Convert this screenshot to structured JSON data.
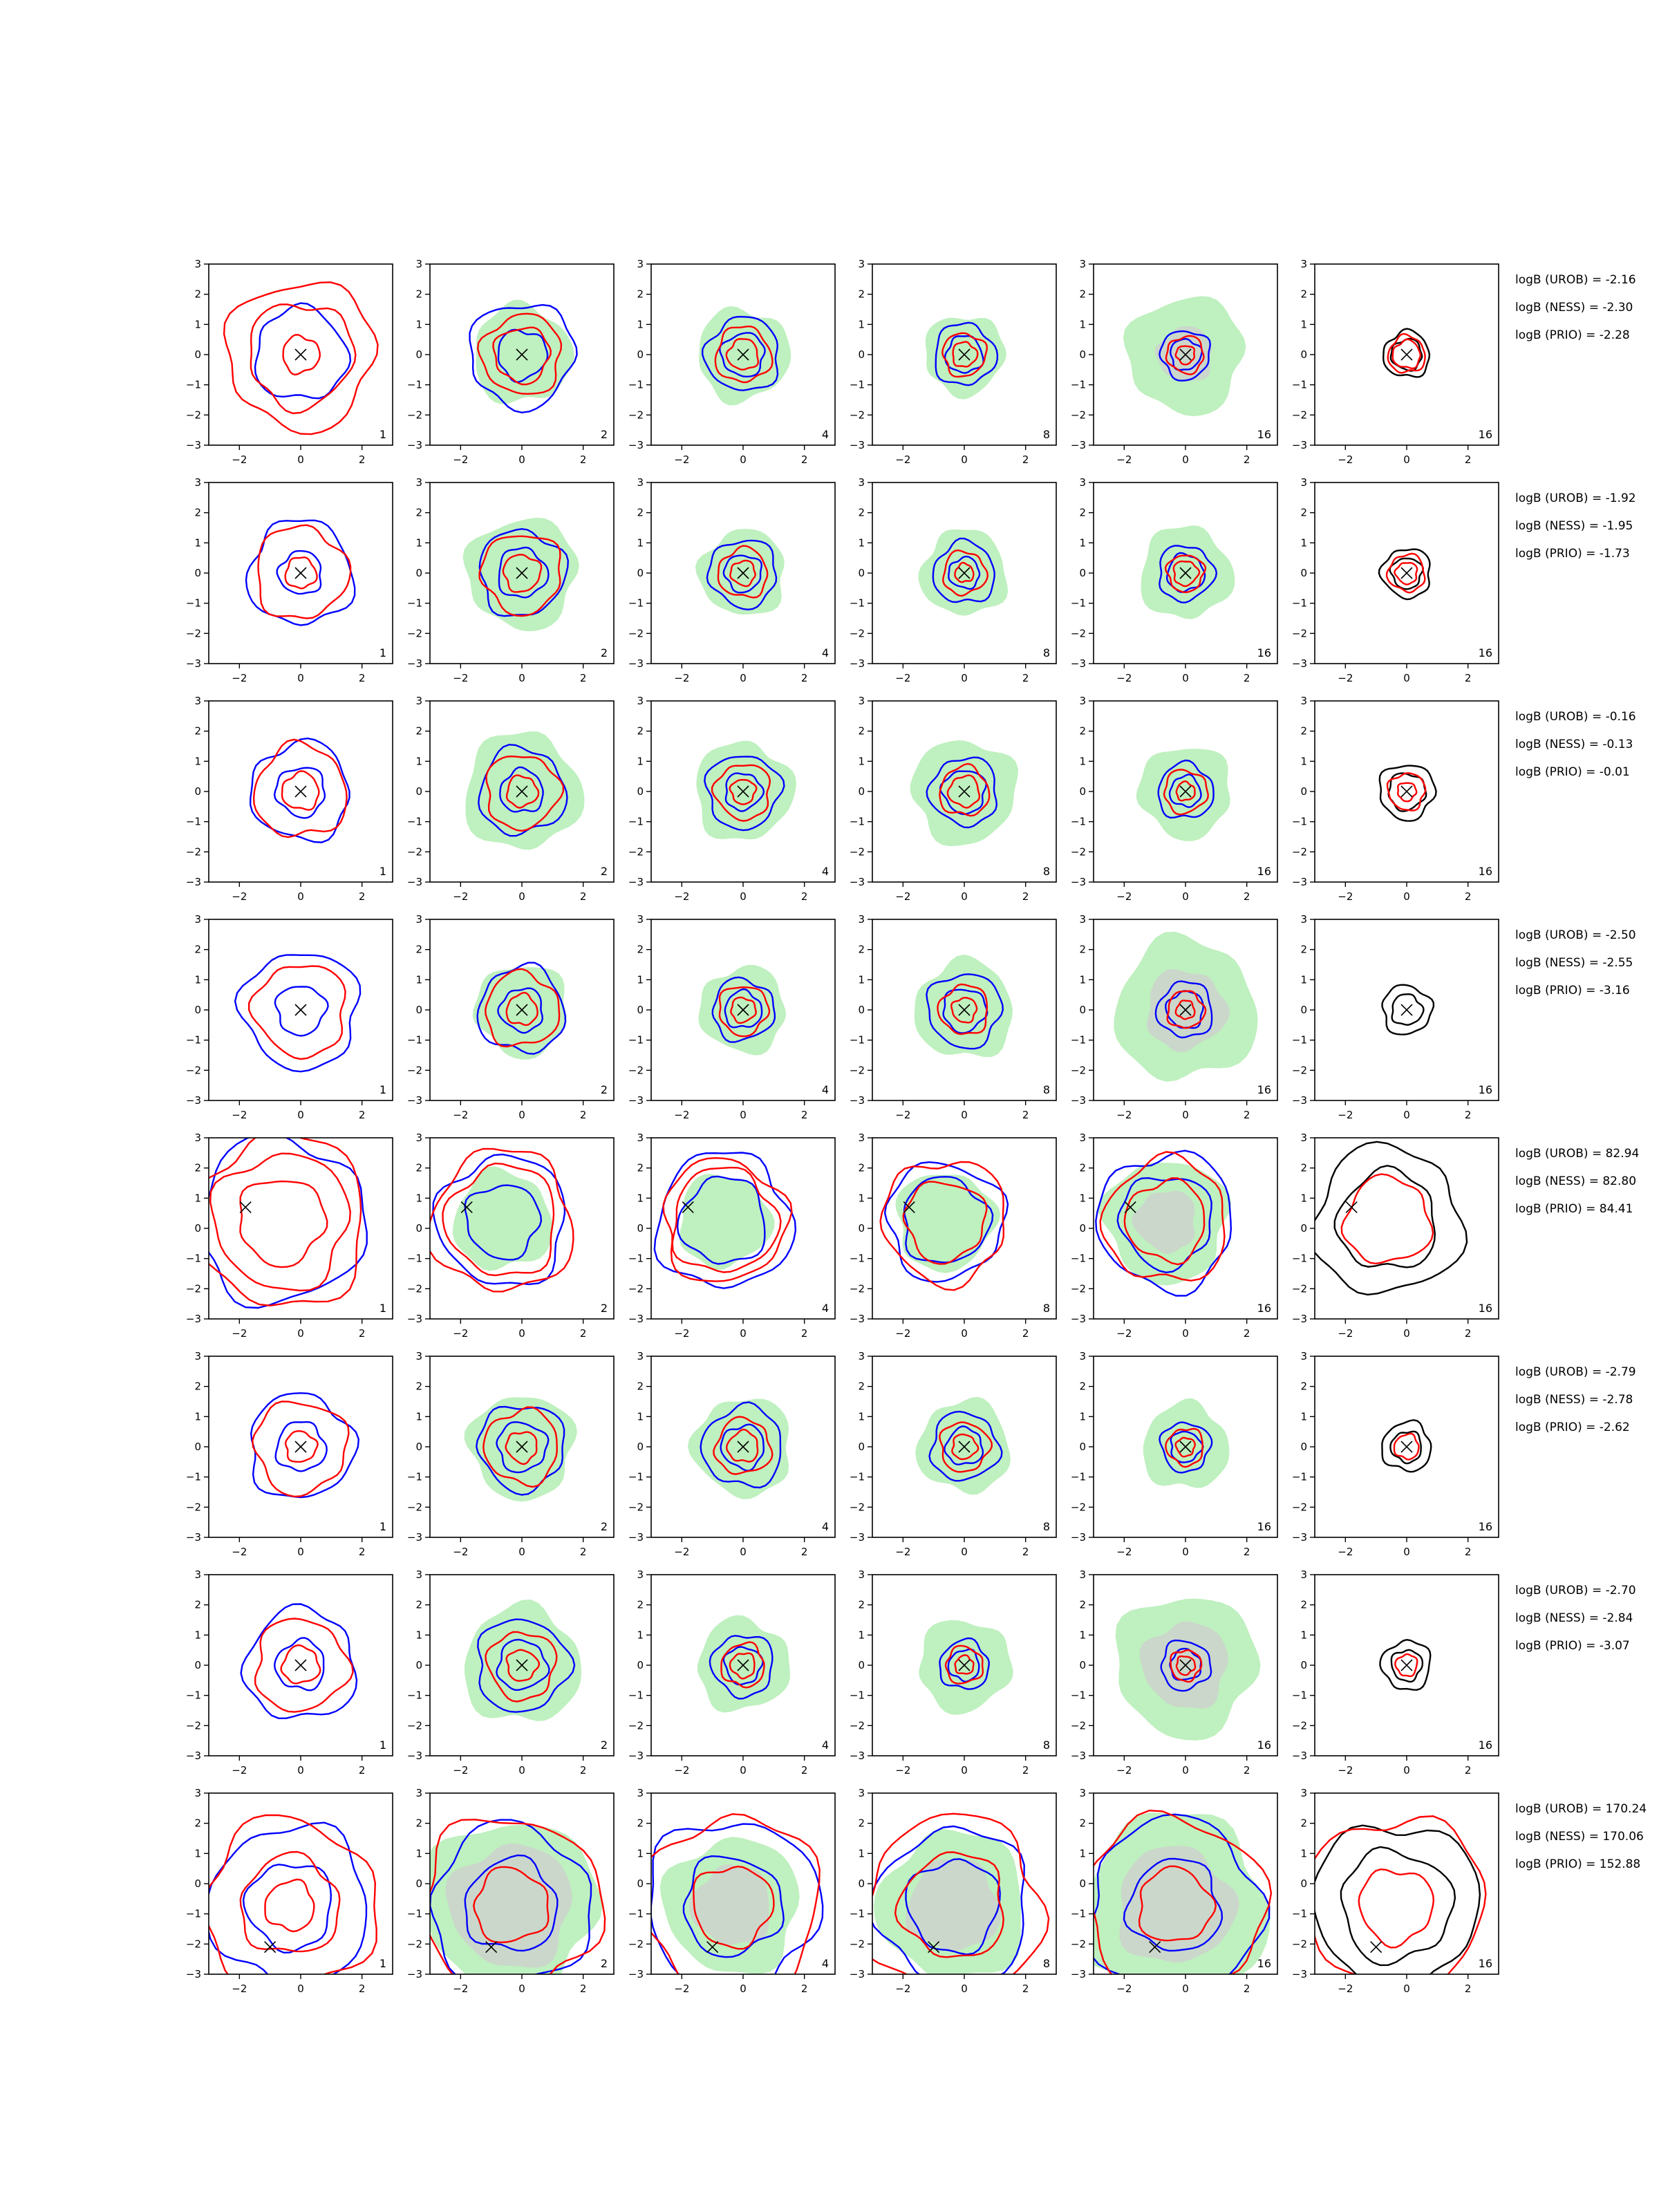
{
  "chart_data": {
    "type": "contour-grid",
    "rows": 8,
    "cols": 6,
    "xlim": [
      -3,
      3
    ],
    "ylim": [
      -3,
      3
    ],
    "x_ticks": [
      -2,
      0,
      2
    ],
    "y_ticks": [
      3,
      2,
      1,
      0,
      -1,
      -2,
      -3
    ],
    "x_tick_labels": [
      "−2",
      "0",
      "2"
    ],
    "y_tick_labels": [
      "3",
      "2",
      "1",
      "0",
      "−1",
      "−2",
      "−3"
    ],
    "column_labels": [
      "1",
      "2",
      "4",
      "8",
      "16",
      "16"
    ],
    "colors": {
      "red": "#ff0000",
      "blue": "#0000ff",
      "black": "#000000",
      "fill_green": "#bff0bf",
      "fill_gray": "#cfcfcf"
    },
    "rows_data": [
      {
        "marker": [
          0,
          0
        ],
        "logB": [
          "logB (UROB) = -2.16",
          "logB (NESS) = -2.30",
          "logB (PRIO) = -2.28"
        ],
        "panels": [
          {
            "fill": null,
            "blue": [
              1.5
            ],
            "red": [
              0.6,
              1.7,
              2.4
            ]
          },
          {
            "fill": [
              1.6
            ],
            "blue": [
              0.8,
              1.7
            ],
            "red": [
              0.9,
              1.3
            ]
          },
          {
            "fill": [
              1.5
            ],
            "blue": [
              0.7,
              1.2
            ],
            "red": [
              0.5,
              0.9
            ]
          },
          {
            "fill": [
              1.3
            ],
            "blue": [
              0.6,
              1.0
            ],
            "red": [
              0.4,
              0.7
            ]
          },
          {
            "fill": [
              1.9,
              0.9
            ],
            "blue": [
              0.5,
              0.8
            ],
            "red": [
              0.3,
              0.6
            ]
          },
          {
            "fill": null,
            "black": [
              0.5,
              0.75
            ],
            "red": [
              0.45,
              0.6
            ]
          }
        ]
      },
      {
        "marker": [
          0,
          0
        ],
        "logB": [
          "logB (UROB) = -1.92",
          "logB (NESS) = -1.95",
          "logB (PRIO) = -1.73"
        ],
        "panels": [
          {
            "fill": null,
            "blue": [
              0.7,
              1.7
            ],
            "red": [
              0.5,
              1.5
            ]
          },
          {
            "fill": [
              1.8
            ],
            "blue": [
              0.8,
              1.4
            ],
            "red": [
              0.6,
              1.3
            ]
          },
          {
            "fill": [
              1.4
            ],
            "blue": [
              0.6,
              1.1
            ],
            "red": [
              0.4,
              0.8
            ]
          },
          {
            "fill": [
              1.4
            ],
            "blue": [
              0.5,
              1.0
            ],
            "red": [
              0.3,
              0.7
            ]
          },
          {
            "fill": [
              1.5
            ],
            "blue": [
              0.6,
              0.9
            ],
            "red": [
              0.4,
              0.6
            ]
          },
          {
            "fill": null,
            "black": [
              0.5,
              0.8
            ],
            "red": [
              0.35,
              0.6
            ]
          }
        ]
      },
      {
        "marker": [
          0,
          0
        ],
        "logB": [
          "logB (UROB) = -0.16",
          "logB (NESS) = -0.13",
          "logB (PRIO) = -0.01"
        ],
        "panels": [
          {
            "fill": null,
            "blue": [
              0.8,
              1.6
            ],
            "red": [
              0.6,
              1.5
            ]
          },
          {
            "fill": [
              1.9
            ],
            "blue": [
              0.7,
              1.4
            ],
            "red": [
              0.5,
              1.2
            ]
          },
          {
            "fill": [
              1.6
            ],
            "blue": [
              0.6,
              1.2
            ],
            "red": [
              0.4,
              0.9
            ]
          },
          {
            "fill": [
              1.7
            ],
            "blue": [
              0.7,
              1.1
            ],
            "red": [
              0.5,
              0.8
            ]
          },
          {
            "fill": [
              1.5
            ],
            "blue": [
              0.5,
              0.9
            ],
            "red": [
              0.3,
              0.7
            ]
          },
          {
            "fill": null,
            "black": [
              0.6,
              0.9
            ],
            "red": [
              0.3,
              0.6
            ]
          }
        ]
      },
      {
        "marker": [
          0,
          0
        ],
        "logB": [
          "logB (UROB) = -2.50",
          "logB (NESS) = -2.55",
          "logB (PRIO) = -3.16"
        ],
        "panels": [
          {
            "fill": null,
            "blue": [
              0.8,
              1.9
            ],
            "red": [
              1.5
            ]
          },
          {
            "fill": [
              1.5
            ],
            "blue": [
              0.7,
              1.4
            ],
            "red": [
              0.5,
              1.2
            ]
          },
          {
            "fill": [
              1.4
            ],
            "blue": [
              0.6,
              1.0
            ],
            "red": [
              0.4,
              0.8
            ]
          },
          {
            "fill": [
              1.6
            ],
            "blue": [
              0.7,
              1.2
            ],
            "red": [
              0.4,
              0.8
            ]
          },
          {
            "fill": [
              2.3,
              1.3
            ],
            "blue": [
              0.6,
              0.9
            ],
            "red": [
              0.3,
              0.6
            ]
          },
          {
            "fill": null,
            "black": [
              0.5,
              0.8
            ],
            "red": []
          }
        ]
      },
      {
        "marker": [
          -1.8,
          0.7
        ],
        "logB": [
          "logB (UROB) = 82.94",
          "logB (NESS) = 82.80",
          "logB (PRIO) = 84.41"
        ],
        "panels": [
          {
            "fill": null,
            "blue": [
              2.7
            ],
            "red": [
              1.4,
              2.2,
              2.8
            ]
          },
          {
            "fill": [
              1.6
            ],
            "blue": [
              1.2,
              2.1
            ],
            "red": [
              1.8,
              2.3
            ]
          },
          {
            "fill": [
              1.5
            ],
            "blue": [
              1.4,
              2.2
            ],
            "red": [
              1.7,
              2.0
            ]
          },
          {
            "fill": [
              1.6
            ],
            "blue": [
              1.4,
              1.9
            ],
            "red": [
              1.3,
              2.0
            ]
          },
          {
            "fill": [
              2.0,
              1.0
            ],
            "blue": [
              1.5,
              2.2
            ],
            "red": [
              1.3,
              2.0
            ]
          },
          {
            "fill": null,
            "black": [
              1.6,
              2.4
            ],
            "red": [
              1.4
            ]
          }
        ]
      },
      {
        "marker": [
          0,
          0
        ],
        "logB": [
          "logB (UROB) = -2.79",
          "logB (NESS) = -2.78",
          "logB (PRIO) = -2.62"
        ],
        "panels": [
          {
            "fill": null,
            "blue": [
              0.8,
              1.7
            ],
            "red": [
              0.5,
              1.5
            ]
          },
          {
            "fill": [
              1.7
            ],
            "blue": [
              0.8,
              1.4
            ],
            "red": [
              0.5,
              1.2
            ]
          },
          {
            "fill": [
              1.6
            ],
            "blue": [
              0.7,
              1.3
            ],
            "red": [
              0.5,
              0.9
            ]
          },
          {
            "fill": [
              1.5
            ],
            "blue": [
              0.6,
              1.1
            ],
            "red": [
              0.4,
              0.8
            ]
          },
          {
            "fill": [
              1.4
            ],
            "blue": [
              0.5,
              0.8
            ],
            "red": [
              0.3,
              0.6
            ]
          },
          {
            "fill": null,
            "black": [
              0.5,
              0.8
            ],
            "red": [
              0.4
            ]
          }
        ]
      },
      {
        "marker": [
          0,
          0
        ],
        "logB": [
          "logB (UROB) = -2.70",
          "logB (NESS) = -2.84",
          "logB (PRIO) = -3.07"
        ],
        "panels": [
          {
            "fill": null,
            "blue": [
              0.8,
              1.8
            ],
            "red": [
              0.6,
              1.5
            ]
          },
          {
            "fill": [
              1.9
            ],
            "blue": [
              0.8,
              1.5
            ],
            "red": [
              0.5,
              1.1
            ]
          },
          {
            "fill": [
              1.5
            ],
            "blue": [
              0.6,
              1.0
            ],
            "red": [
              0.4,
              0.7
            ]
          },
          {
            "fill": [
              1.5
            ],
            "blue": [
              0.5,
              0.8
            ],
            "red": [
              0.3,
              0.6
            ]
          },
          {
            "fill": [
              2.3,
              1.4
            ],
            "blue": [
              0.5,
              0.8
            ],
            "red": [
              0.3,
              0.5
            ]
          },
          {
            "fill": null,
            "black": [
              0.5,
              0.8
            ],
            "red": [
              0.35
            ]
          }
        ]
      },
      {
        "marker": [
          -1.0,
          -2.1
        ],
        "logB": [
          "logB (UROB) = 170.24",
          "logB (NESS) = 170.06",
          "logB (PRIO) = 152.88"
        ],
        "panels": [
          {
            "fill": null,
            "blue": [
              1.4,
              2.6
            ],
            "red": [
              0.8,
              1.6,
              2.8
            ]
          },
          {
            "fill": [
              2.8,
              2.0
            ],
            "blue": [
              1.5,
              2.6
            ],
            "red": [
              1.2,
              2.9
            ]
          },
          {
            "fill": [
              2.2,
              1.3
            ],
            "blue": [
              1.6,
              2.8
            ],
            "red": [
              1.3,
              2.9
            ]
          },
          {
            "fill": [
              2.4,
              1.5
            ],
            "blue": [
              1.5,
              2.5
            ],
            "red": [
              1.7,
              2.9
            ]
          },
          {
            "fill": [
              3.0,
              1.9
            ],
            "blue": [
              1.5,
              2.8
            ],
            "red": [
              1.2,
              2.9
            ]
          },
          {
            "fill": null,
            "black": [
              1.8,
              2.7
            ],
            "red": [
              1.2,
              2.9
            ]
          }
        ]
      }
    ]
  }
}
